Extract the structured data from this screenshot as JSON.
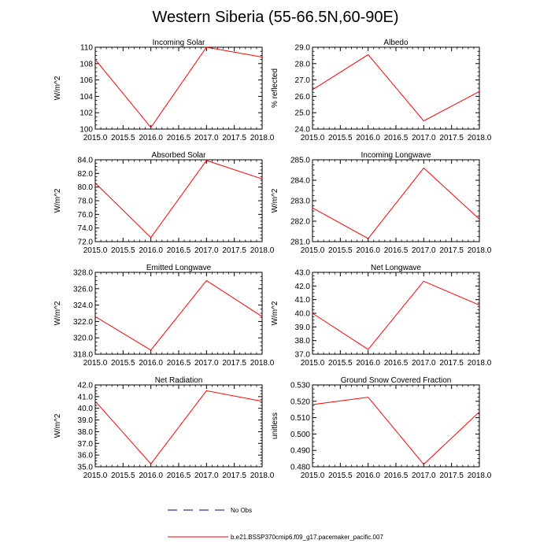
{
  "title": "Western Siberia (55-66.5N,60-90E)",
  "x_ticks": [
    2015.0,
    2015.5,
    2016.0,
    2016.5,
    2017.0,
    2017.5,
    2018.0
  ],
  "x_tick_labels": [
    "2015.0",
    "2015.5",
    "2016.0",
    "2016.5",
    "2017.0",
    "2017.5",
    "2018.0"
  ],
  "chart_data": [
    {
      "type": "line",
      "title": "Incoming Solar",
      "ylabel": "W/m^2",
      "xlim": [
        2015,
        2018
      ],
      "ylim": [
        100,
        110
      ],
      "yticks": [
        "100",
        "102",
        "104",
        "106",
        "108",
        "110"
      ],
      "series": [
        {
          "name": "b.e21.BSSP370cmip6.f09_g17.pacemaker_pacific.007",
          "color": "#ff0000",
          "x": [
            2015,
            2016,
            2017,
            2018
          ],
          "y": [
            108.5,
            100.2,
            110.0,
            108.8
          ]
        }
      ]
    },
    {
      "type": "line",
      "title": "Albedo",
      "ylabel": "% reflected",
      "xlim": [
        2015,
        2018
      ],
      "ylim": [
        24,
        29
      ],
      "yticks": [
        "24.0",
        "25.0",
        "26.0",
        "27.0",
        "28.0",
        "29.0"
      ],
      "series": [
        {
          "name": "b.e21.BSSP370cmip6.f09_g17.pacemaker_pacific.007",
          "color": "#ff0000",
          "x": [
            2015,
            2016,
            2017,
            2018
          ],
          "y": [
            26.4,
            28.55,
            24.5,
            26.3
          ]
        }
      ]
    },
    {
      "type": "line",
      "title": "Absorbed Solar",
      "ylabel": "W/m^2",
      "xlim": [
        2015,
        2018
      ],
      "ylim": [
        72,
        84
      ],
      "yticks": [
        "72.0",
        "74.0",
        "76.0",
        "78.0",
        "80.0",
        "82.0",
        "84.0"
      ],
      "series": [
        {
          "name": "b.e21.BSSP370cmip6.f09_g17.pacemaker_pacific.007",
          "color": "#ff0000",
          "x": [
            2015,
            2016,
            2017,
            2018
          ],
          "y": [
            80.6,
            72.6,
            83.9,
            81.2
          ]
        }
      ]
    },
    {
      "type": "line",
      "title": "Incoming Longwave",
      "ylabel": "W/m^2",
      "xlim": [
        2015,
        2018
      ],
      "ylim": [
        281,
        285
      ],
      "yticks": [
        "281.0",
        "282.0",
        "283.0",
        "284.0",
        "285.0"
      ],
      "series": [
        {
          "name": "b.e21.BSSP370cmip6.f09_g17.pacemaker_pacific.007",
          "color": "#ff0000",
          "x": [
            2015,
            2016,
            2017,
            2018
          ],
          "y": [
            282.65,
            281.15,
            284.6,
            282.1
          ]
        }
      ]
    },
    {
      "type": "line",
      "title": "Emitted Longwave",
      "ylabel": "W/m^2",
      "xlim": [
        2015,
        2018
      ],
      "ylim": [
        318,
        328
      ],
      "yticks": [
        "318.0",
        "320.0",
        "322.0",
        "324.0",
        "326.0",
        "328.0"
      ],
      "series": [
        {
          "name": "b.e21.BSSP370cmip6.f09_g17.pacemaker_pacific.007",
          "color": "#ff0000",
          "x": [
            2015,
            2016,
            2017,
            2018
          ],
          "y": [
            322.6,
            318.5,
            327.0,
            322.6
          ]
        }
      ]
    },
    {
      "type": "line",
      "title": "Net Longwave",
      "ylabel": "W/m^2",
      "xlim": [
        2015,
        2018
      ],
      "ylim": [
        37,
        43
      ],
      "yticks": [
        "37.0",
        "38.0",
        "39.0",
        "40.0",
        "41.0",
        "42.0",
        "43.0"
      ],
      "series": [
        {
          "name": "b.e21.BSSP370cmip6.f09_g17.pacemaker_pacific.007",
          "color": "#ff0000",
          "x": [
            2015,
            2016,
            2017,
            2018
          ],
          "y": [
            40.0,
            37.35,
            42.35,
            40.6
          ]
        }
      ]
    },
    {
      "type": "line",
      "title": "Net Radiation",
      "ylabel": "W/m^2",
      "xlim": [
        2015,
        2018
      ],
      "ylim": [
        35,
        42
      ],
      "yticks": [
        "35.0",
        "36.0",
        "37.0",
        "38.0",
        "39.0",
        "40.0",
        "41.0",
        "42.0"
      ],
      "series": [
        {
          "name": "b.e21.BSSP370cmip6.f09_g17.pacemaker_pacific.007",
          "color": "#ff0000",
          "x": [
            2015,
            2016,
            2017,
            2018
          ],
          "y": [
            40.6,
            35.25,
            41.5,
            40.6
          ]
        }
      ]
    },
    {
      "type": "line",
      "title": "Ground Snow Covered Fraction",
      "ylabel": "unitless",
      "xlim": [
        2015,
        2018
      ],
      "ylim": [
        0.48,
        0.53
      ],
      "yticks": [
        "0.480",
        "0.490",
        "0.500",
        "0.510",
        "0.520",
        "0.530"
      ],
      "series": [
        {
          "name": "b.e21.BSSP370cmip6.f09_g17.pacemaker_pacific.007",
          "color": "#ff0000",
          "x": [
            2015,
            2016,
            2017,
            2018
          ],
          "y": [
            0.518,
            0.5225,
            0.4815,
            0.5135
          ]
        }
      ]
    }
  ],
  "legend": [
    {
      "label": "No Obs",
      "color": "#000080",
      "dashed": true
    },
    {
      "label": "b.e21.BSSP370cmip6.f09_g17.pacemaker_pacific.007",
      "color": "#ff0000",
      "dashed": false
    }
  ]
}
